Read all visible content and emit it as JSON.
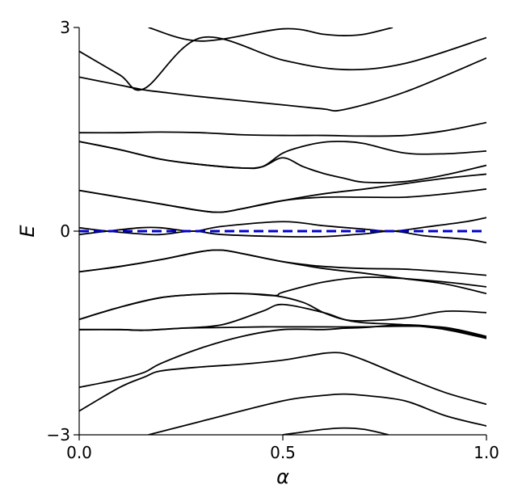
{
  "chart_data": {
    "type": "line",
    "title": "",
    "xlabel": "α",
    "ylabel": "E",
    "xlim": [
      0.0,
      1.0
    ],
    "ylim": [
      -3,
      3
    ],
    "xticks": [
      0.0,
      0.5,
      1.0
    ],
    "xtick_labels": [
      "0.0",
      "0.5",
      "1.0"
    ],
    "yticks": [
      -3,
      0,
      3
    ],
    "ytick_labels": [
      "−3",
      "0",
      "3"
    ],
    "grid": false,
    "legend": "none",
    "colors": {
      "bands": "#000000",
      "fermi_level": "#0000cc"
    },
    "reference_line": {
      "style": "dashed",
      "y": 0
    },
    "series": [
      {
        "x": [
          0.17,
          0.3,
          0.5,
          0.6,
          0.65,
          0.7,
          0.77
        ],
        "y": [
          3.0,
          2.8,
          2.98,
          2.9,
          2.88,
          2.9,
          3.0
        ]
      },
      {
        "x": [
          0.0,
          0.1,
          0.16,
          0.3,
          0.5,
          0.65,
          0.8,
          1.0
        ],
        "y": [
          2.65,
          2.3,
          2.1,
          2.85,
          2.52,
          2.38,
          2.47,
          2.85
        ]
      },
      {
        "x": [
          0.0,
          0.1,
          0.16,
          0.2,
          0.3,
          0.5,
          0.6,
          0.65,
          0.8,
          1.0
        ],
        "y": [
          2.27,
          2.15,
          2.08,
          2.05,
          1.98,
          1.86,
          1.8,
          1.79,
          2.05,
          2.55
        ]
      },
      {
        "x": [
          0.0,
          0.1,
          0.2,
          0.3,
          0.4,
          0.5,
          0.6,
          0.7,
          0.8,
          0.9,
          1.0
        ],
        "y": [
          1.45,
          1.45,
          1.46,
          1.45,
          1.42,
          1.41,
          1.41,
          1.4,
          1.41,
          1.48,
          1.6
        ]
      },
      {
        "x": [
          0.0,
          0.1,
          0.2,
          0.3,
          0.4,
          0.45,
          0.5,
          0.55,
          0.6,
          0.65,
          0.7,
          0.8,
          0.9,
          1.0
        ],
        "y": [
          1.32,
          1.2,
          1.06,
          0.98,
          0.93,
          0.95,
          1.15,
          1.25,
          1.31,
          1.32,
          1.29,
          1.15,
          1.14,
          1.18
        ]
      },
      {
        "x": [
          0.0,
          0.1,
          0.2,
          0.3,
          0.4,
          0.45,
          0.5,
          0.55,
          0.6,
          0.65,
          0.7,
          0.8,
          0.9,
          1.0
        ],
        "y": [
          1.32,
          1.2,
          1.06,
          0.98,
          0.93,
          0.95,
          1.08,
          0.95,
          0.85,
          0.78,
          0.72,
          0.73,
          0.83,
          0.97
        ]
      },
      {
        "x": [
          0.0,
          0.1,
          0.2,
          0.3,
          0.35,
          0.4,
          0.5,
          0.6,
          0.7,
          0.8,
          0.9,
          1.0
        ],
        "y": [
          0.6,
          0.5,
          0.4,
          0.3,
          0.28,
          0.33,
          0.45,
          0.5,
          0.5,
          0.5,
          0.55,
          0.62
        ]
      },
      {
        "x": [
          0.0,
          0.1,
          0.2,
          0.3,
          0.35,
          0.4,
          0.5,
          0.6,
          0.7,
          0.8,
          0.9,
          1.0
        ],
        "y": [
          0.6,
          0.5,
          0.4,
          0.3,
          0.28,
          0.33,
          0.45,
          0.55,
          0.62,
          0.7,
          0.78,
          0.84
        ]
      },
      {
        "x": [
          0.0,
          0.07,
          0.15,
          0.2,
          0.28,
          0.35,
          0.5,
          0.6,
          0.7,
          0.77,
          0.85,
          0.95,
          1.0
        ],
        "y": [
          -0.05,
          0.0,
          0.05,
          0.05,
          0.0,
          0.07,
          0.14,
          0.08,
          0.03,
          0.0,
          0.06,
          0.14,
          0.2
        ]
      },
      {
        "x": [
          0.0,
          0.07,
          0.15,
          0.2,
          0.28,
          0.35,
          0.5,
          0.6,
          0.7,
          0.77,
          0.85,
          0.95,
          1.0
        ],
        "y": [
          0.05,
          0.0,
          -0.04,
          -0.05,
          0.0,
          -0.05,
          -0.08,
          -0.08,
          -0.04,
          0.0,
          -0.07,
          -0.12,
          -0.17
        ]
      },
      {
        "x": [
          0.0,
          0.1,
          0.2,
          0.3,
          0.35,
          0.4,
          0.5,
          0.6,
          0.7,
          0.8,
          0.9,
          1.0
        ],
        "y": [
          -0.6,
          -0.52,
          -0.42,
          -0.3,
          -0.28,
          -0.33,
          -0.45,
          -0.52,
          -0.55,
          -0.56,
          -0.6,
          -0.65
        ]
      },
      {
        "x": [
          0.0,
          0.1,
          0.2,
          0.3,
          0.35,
          0.4,
          0.5,
          0.6,
          0.7,
          0.8,
          0.9,
          1.0
        ],
        "y": [
          -0.6,
          -0.52,
          -0.42,
          -0.3,
          -0.28,
          -0.33,
          -0.45,
          -0.55,
          -0.62,
          -0.7,
          -0.78,
          -0.92
        ]
      },
      {
        "x": [
          0.0,
          0.1,
          0.2,
          0.3,
          0.4,
          0.48,
          0.5,
          0.6,
          0.7,
          0.8,
          0.9,
          1.0
        ],
        "y": [
          -1.3,
          -1.12,
          -0.98,
          -0.93,
          -0.92,
          -0.95,
          -0.9,
          -0.75,
          -0.68,
          -0.7,
          -0.75,
          -0.82
        ]
      },
      {
        "x": [
          0.0,
          0.1,
          0.2,
          0.3,
          0.4,
          0.48,
          0.55,
          0.6,
          0.65,
          0.7,
          0.8,
          0.9,
          1.0
        ],
        "y": [
          -1.3,
          -1.12,
          -0.98,
          -0.93,
          -0.92,
          -0.95,
          -1.05,
          -1.2,
          -1.3,
          -1.32,
          -1.28,
          -1.18,
          -1.2
        ]
      },
      {
        "x": [
          0.0,
          0.1,
          0.16,
          0.25,
          0.35,
          0.45,
          0.5,
          0.6,
          0.65,
          0.7,
          0.8,
          0.9,
          1.0
        ],
        "y": [
          -1.45,
          -1.45,
          -1.46,
          -1.43,
          -1.38,
          -1.18,
          -1.08,
          -1.2,
          -1.3,
          -1.35,
          -1.38,
          -1.45,
          -1.58
        ]
      },
      {
        "x": [
          0.0,
          0.1,
          0.16,
          0.25,
          0.35,
          0.45,
          0.5,
          0.6,
          0.7,
          0.8,
          0.9,
          1.0
        ],
        "y": [
          -1.45,
          -1.45,
          -1.46,
          -1.43,
          -1.42,
          -1.41,
          -1.41,
          -1.41,
          -1.41,
          -1.4,
          -1.42,
          -1.55
        ]
      },
      {
        "x": [
          0.0,
          0.1,
          0.16,
          0.2,
          0.3,
          0.4,
          0.5,
          0.6,
          0.65,
          0.7,
          0.8,
          0.9,
          1.0
        ],
        "y": [
          -2.3,
          -2.18,
          -2.08,
          -1.95,
          -1.72,
          -1.55,
          -1.45,
          -1.45,
          -1.43,
          -1.42,
          -1.38,
          -1.43,
          -1.57
        ]
      },
      {
        "x": [
          0.0,
          0.1,
          0.16,
          0.2,
          0.3,
          0.4,
          0.5,
          0.55,
          0.6,
          0.62,
          0.65,
          0.7,
          0.8,
          0.9,
          1.0
        ],
        "y": [
          -2.65,
          -2.3,
          -2.15,
          -2.06,
          -2.0,
          -1.96,
          -1.9,
          -1.85,
          -1.8,
          -1.79,
          -1.8,
          -1.9,
          -2.15,
          -2.38,
          -2.55
        ]
      },
      {
        "x": [
          0.17,
          0.3,
          0.5,
          0.6,
          0.65,
          0.7,
          0.8,
          0.9,
          1.0
        ],
        "y": [
          -3.0,
          -2.8,
          -2.5,
          -2.42,
          -2.4,
          -2.42,
          -2.5,
          -2.72,
          -2.87
        ]
      },
      {
        "x": [
          0.5,
          0.6,
          0.65,
          0.7,
          0.76
        ],
        "y": [
          -3.0,
          -2.92,
          -2.9,
          -2.92,
          -3.0
        ]
      }
    ]
  }
}
